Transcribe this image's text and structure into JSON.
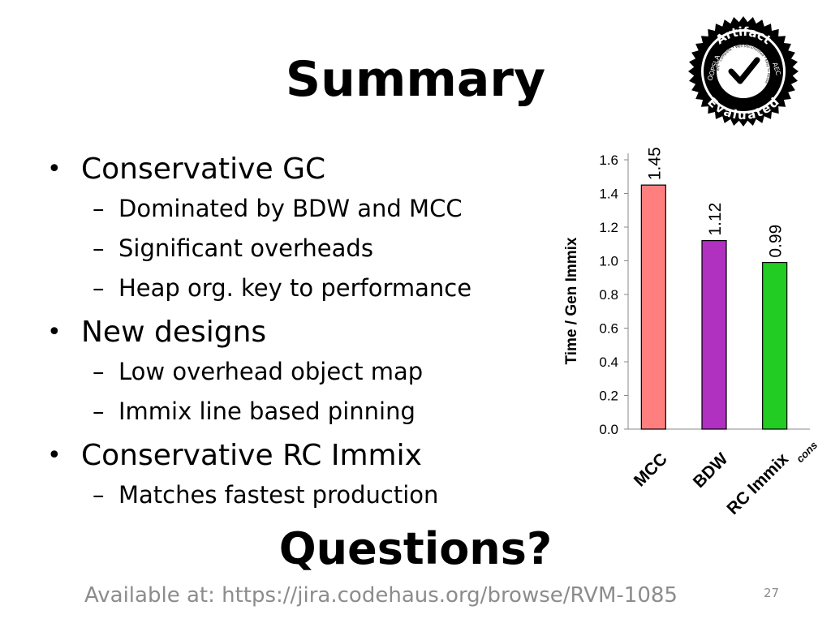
{
  "slide": {
    "title": "Summary",
    "page_number": "27",
    "questions": "Questions?",
    "footer": "Available at: https://jira.codehaus.org/browse/RVM-1085"
  },
  "bullets": [
    {
      "text": "Conservative GC",
      "subs": [
        "Dominated by BDW and MCC",
        "Significant overheads",
        "Heap org. key to performance"
      ]
    },
    {
      "text": "New designs",
      "subs": [
        "Low overhead object map",
        "Immix line based pinning"
      ]
    },
    {
      "text": "Conservative RC Immix",
      "subs": [
        "Matches fastest production"
      ]
    }
  ],
  "badge": {
    "top_text": "Artifact",
    "bottom_text": "Evaluated",
    "left_text": "OOPSLA",
    "right_text": "AEC",
    "inner_text": "Consistent * Complete * Well Documented * Easy to Reuse",
    "icon": "checkmark-icon"
  },
  "chart_data": {
    "type": "bar",
    "categories": [
      "MCC",
      "BDW",
      "RC Immix"
    ],
    "category_subscripts": [
      "",
      "",
      "cons"
    ],
    "values": [
      1.45,
      1.12,
      0.99
    ],
    "data_labels": [
      "1.45",
      "1.12",
      "0.99"
    ],
    "colors": [
      "#ff7f7f",
      "#b030c0",
      "#22cc22"
    ],
    "ylabel": "Time / Gen Immix",
    "xlabel": "",
    "ylim": [
      0,
      1.6
    ],
    "yticks": [
      "0.0",
      "0.2",
      "0.4",
      "0.6",
      "0.8",
      "1.0",
      "1.2",
      "1.4",
      "1.6"
    ],
    "grid": false
  }
}
